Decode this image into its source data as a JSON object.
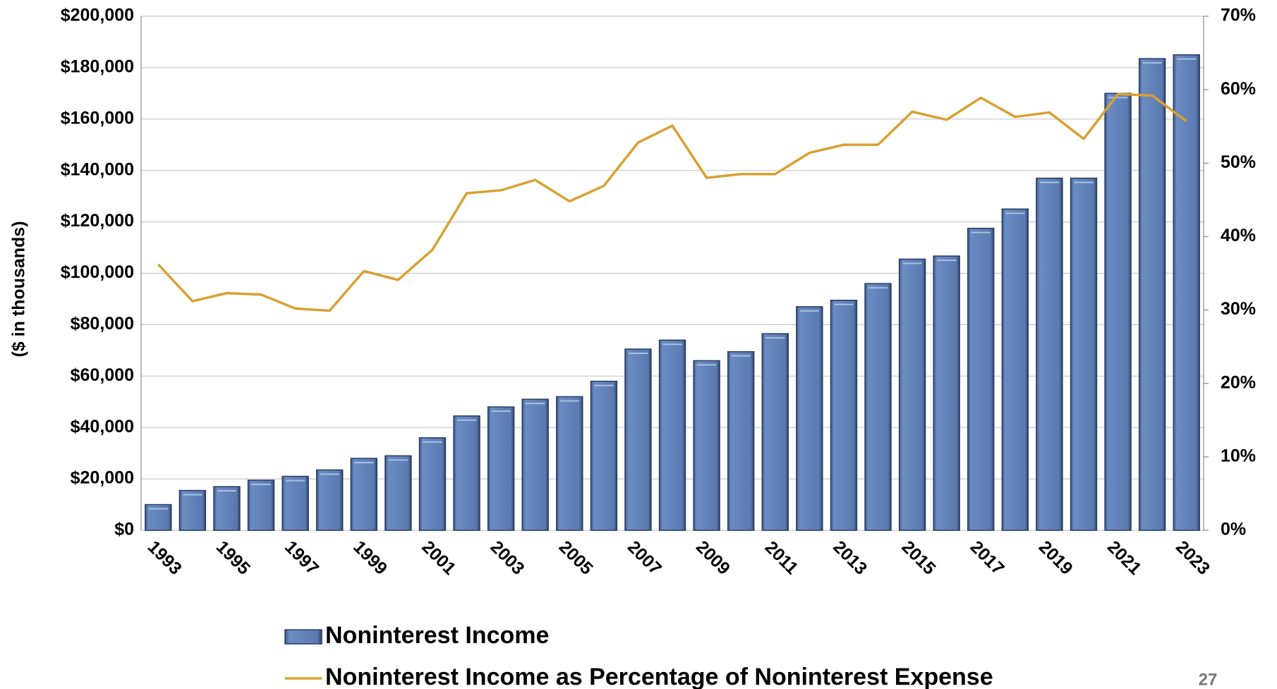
{
  "chart_data": {
    "type": "bar",
    "y_axis_label": "($ in thousands)",
    "page_number": "27",
    "categories": [
      "1993",
      null,
      "1995",
      null,
      "1997",
      null,
      "1999",
      null,
      "2001",
      null,
      "2003",
      null,
      "2005",
      null,
      "2007",
      null,
      "2009",
      null,
      "2011",
      null,
      "2013",
      null,
      "2015",
      null,
      "2017",
      null,
      "2019",
      null,
      "2021",
      null,
      "2023"
    ],
    "series": [
      {
        "name": "Noninterest Income",
        "type": "bar",
        "color": "#5a7ab0",
        "values": [
          10000,
          15500,
          17000,
          19500,
          21000,
          23500,
          28000,
          29000,
          36000,
          44500,
          48000,
          51000,
          52000,
          58000,
          70500,
          74000,
          66000,
          69500,
          76500,
          87000,
          89500,
          96000,
          105500,
          106700,
          117500,
          125000,
          137000,
          137000,
          170000,
          183500,
          185000
        ]
      },
      {
        "name": "Noninterest Income as Percentage of Noninterest Expense",
        "type": "line",
        "axis": "y2",
        "color": "#d9a031",
        "values": [
          36.2,
          31.2,
          32.3,
          32.1,
          30.2,
          29.9,
          35.3,
          34.1,
          38.2,
          45.9,
          46.3,
          47.7,
          44.8,
          46.9,
          52.8,
          55.1,
          48.0,
          48.5,
          48.5,
          51.4,
          52.5,
          52.5,
          57.0,
          55.9,
          58.9,
          56.3,
          56.9,
          53.3,
          59.4,
          59.2,
          55.7
        ]
      }
    ],
    "ylim": [
      0,
      200000
    ],
    "yticks": [
      {
        "value": 0,
        "label": "$0"
      },
      {
        "value": 20000,
        "label": "$20,000"
      },
      {
        "value": 40000,
        "label": "$40,000"
      },
      {
        "value": 60000,
        "label": "$60,000"
      },
      {
        "value": 80000,
        "label": "$80,000"
      },
      {
        "value": 100000,
        "label": "$100,000"
      },
      {
        "value": 120000,
        "label": "$120,000"
      },
      {
        "value": 140000,
        "label": "$140,000"
      },
      {
        "value": 160000,
        "label": "$160,000"
      },
      {
        "value": 180000,
        "label": "$180,000"
      },
      {
        "value": 200000,
        "label": "$200,000"
      }
    ],
    "y2lim": [
      0,
      70
    ],
    "y2ticks": [
      {
        "value": 0,
        "label": "0%"
      },
      {
        "value": 10,
        "label": "10%"
      },
      {
        "value": 20,
        "label": "20%"
      },
      {
        "value": 30,
        "label": "30%"
      },
      {
        "value": 40,
        "label": "40%"
      },
      {
        "value": 50,
        "label": "50%"
      },
      {
        "value": 60,
        "label": "60%"
      },
      {
        "value": 70,
        "label": "70%"
      }
    ],
    "grid": true,
    "legend": "bottom"
  }
}
